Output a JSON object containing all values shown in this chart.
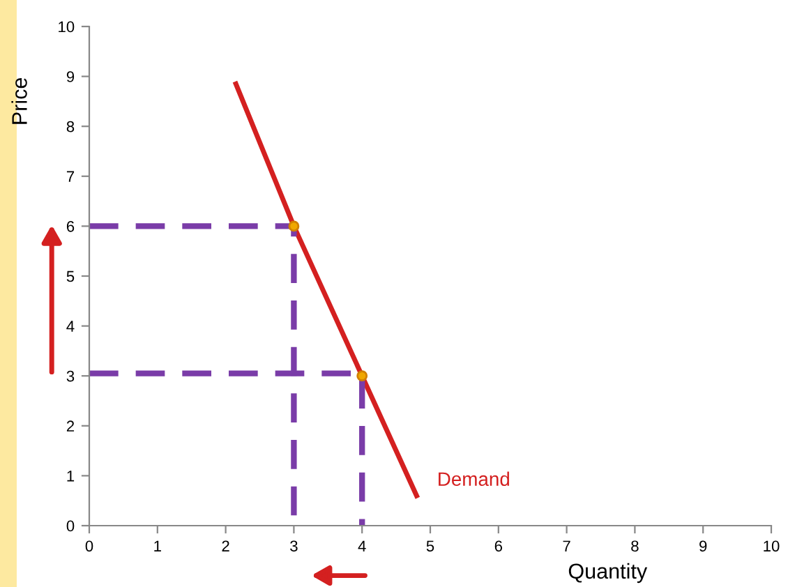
{
  "chart_data": {
    "type": "line",
    "xlabel": "Quantity",
    "ylabel": "Price",
    "xlim": [
      0,
      10
    ],
    "ylim": [
      0,
      10
    ],
    "xticks": [
      0,
      1,
      2,
      3,
      4,
      5,
      6,
      7,
      8,
      9,
      10
    ],
    "yticks": [
      0,
      1,
      2,
      3,
      4,
      5,
      6,
      7,
      8,
      9,
      10
    ],
    "grid": false,
    "series": [
      {
        "color": "#d42020",
        "line_style": "solid",
        "x": [
          2.15,
          3,
          4,
          4.8
        ],
        "values": [
          8.85,
          6,
          3,
          0.6
        ]
      },
      {
        "type": "line",
        "color": "#7a3ca8",
        "line_style": "dashed",
        "x": [
          0,
          3,
          3
        ],
        "values": [
          6,
          6,
          0
        ]
      },
      {
        "type": "line",
        "color": "#7a3ca8",
        "line_style": "dashed",
        "x": [
          0,
          4,
          4
        ],
        "values": [
          3.05,
          3.05,
          0
        ]
      },
      {
        "type": "scatter",
        "color": "#f0a800",
        "marker": "circle",
        "x": [
          3,
          4
        ],
        "values": [
          6,
          3
        ]
      }
    ],
    "annotations": [
      "Demand"
    ]
  }
}
